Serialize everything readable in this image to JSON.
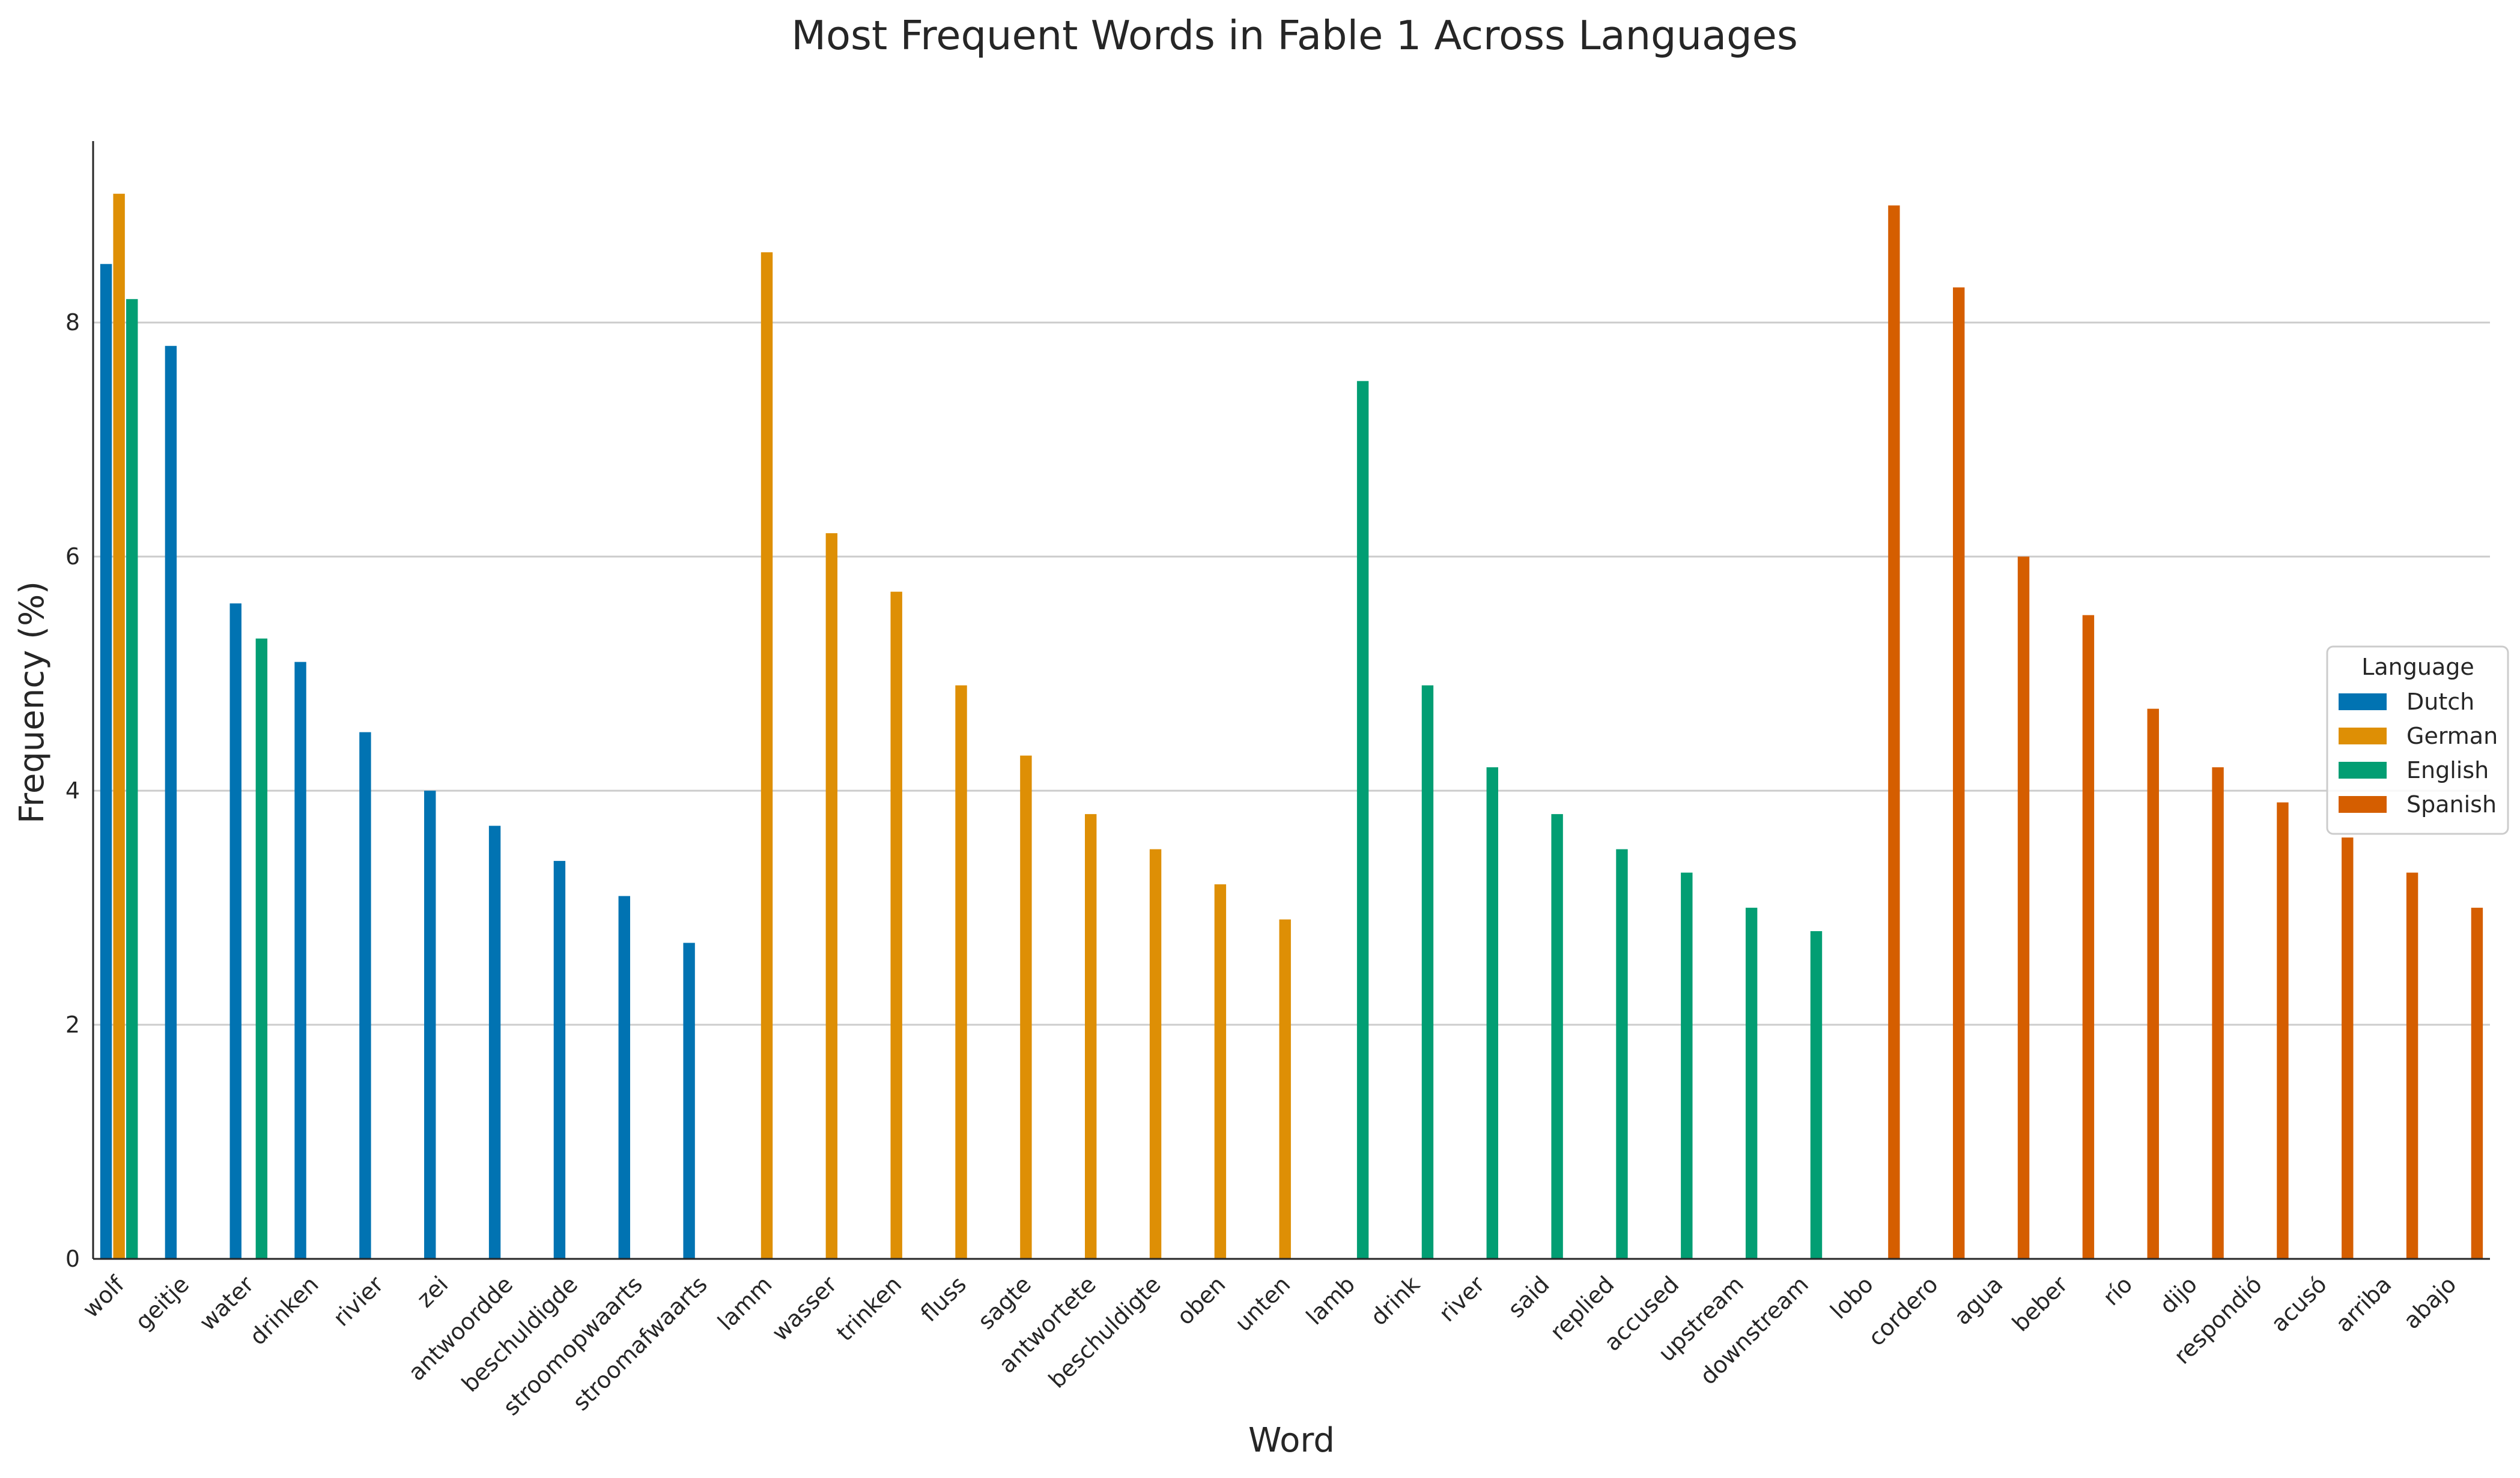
{
  "chart_data": {
    "type": "bar",
    "title": "Most Frequent Words in Fable 1 Across Languages",
    "xlabel": "Word",
    "ylabel": "Frequency (%)",
    "ylim": [
      0,
      9.55
    ],
    "yticks": [
      0,
      2,
      4,
      6,
      8
    ],
    "grid": "horizontal",
    "legend_title": "Language",
    "legend_position": "center-right",
    "categories": [
      "wolf",
      "geitje",
      "water",
      "drinken",
      "rivier",
      "zei",
      "antwoordde",
      "beschuldigde",
      "stroomopwaarts",
      "stroomafwaarts",
      "lamm",
      "wasser",
      "trinken",
      "fluss",
      "sagte",
      "antwortete",
      "beschuldigte",
      "oben",
      "unten",
      "lamb",
      "drink",
      "river",
      "said",
      "replied",
      "accused",
      "upstream",
      "downstream",
      "lobo",
      "cordero",
      "agua",
      "beber",
      "río",
      "dijo",
      "respondió",
      "acusó",
      "arriba",
      "abajo"
    ],
    "series": [
      {
        "name": "Dutch",
        "color": "#0173b2",
        "values": [
          8.5,
          7.8,
          5.6,
          5.1,
          4.5,
          4.0,
          3.7,
          3.4,
          3.1,
          2.7,
          null,
          null,
          null,
          null,
          null,
          null,
          null,
          null,
          null,
          null,
          null,
          null,
          null,
          null,
          null,
          null,
          null,
          null,
          null,
          null,
          null,
          null,
          null,
          null,
          null,
          null,
          null
        ]
      },
      {
        "name": "German",
        "color": "#de8f05",
        "values": [
          9.1,
          null,
          null,
          null,
          null,
          null,
          null,
          null,
          null,
          null,
          8.6,
          6.2,
          5.7,
          4.9,
          4.3,
          3.8,
          3.5,
          3.2,
          2.9,
          null,
          null,
          null,
          null,
          null,
          null,
          null,
          null,
          null,
          null,
          null,
          null,
          null,
          null,
          null,
          null,
          null,
          null
        ]
      },
      {
        "name": "English",
        "color": "#029e73",
        "values": [
          8.2,
          null,
          5.3,
          null,
          null,
          null,
          null,
          null,
          null,
          null,
          null,
          null,
          null,
          null,
          null,
          null,
          null,
          null,
          null,
          7.5,
          4.9,
          4.2,
          3.8,
          3.5,
          3.3,
          3.0,
          2.8,
          null,
          null,
          null,
          null,
          null,
          null,
          null,
          null,
          null,
          null
        ]
      },
      {
        "name": "Spanish",
        "color": "#d55e00",
        "values": [
          null,
          null,
          null,
          null,
          null,
          null,
          null,
          null,
          null,
          null,
          null,
          null,
          null,
          null,
          null,
          null,
          null,
          null,
          null,
          null,
          null,
          null,
          null,
          null,
          null,
          null,
          null,
          9.0,
          8.3,
          6.0,
          5.5,
          4.7,
          4.2,
          3.9,
          3.6,
          3.3,
          3.0
        ]
      }
    ]
  }
}
